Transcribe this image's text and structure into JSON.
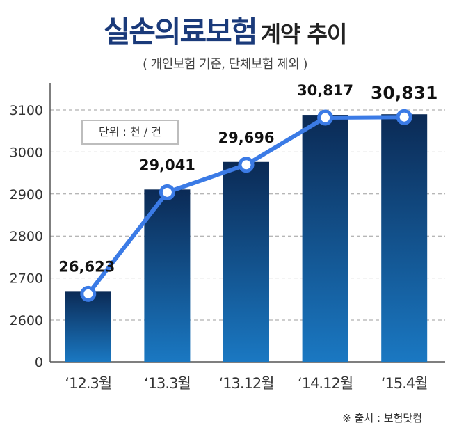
{
  "title": {
    "main": "실손의료보험",
    "sub": "계약 추이"
  },
  "subtitle": "( 개인보험 기준, 단체보험 제외 )",
  "unit_note": "단위 : 천 / 건",
  "source": "※ 출처 : 보험닷컴",
  "chart_data": {
    "type": "bar",
    "categories": [
      "‘12.3월",
      "‘13.3월",
      "‘13.12월",
      "‘14.12월",
      "‘15.4월"
    ],
    "values": [
      26623,
      29041,
      29696,
      30817,
      30831
    ],
    "data_labels": [
      "26,623",
      "29,041",
      "29,696",
      "30,817",
      "30,831"
    ],
    "overlay_line": true,
    "y_axis": {
      "ticks": [
        "3100",
        "3000",
        "2900",
        "2800",
        "2700",
        "2600",
        "0"
      ],
      "tick_values": [
        3100,
        3000,
        2900,
        2800,
        2700,
        2600,
        0
      ],
      "broken": true
    },
    "grid": "dashed-horizontal",
    "colors": {
      "bar_top": "#0b2a55",
      "bar_bottom": "#1a78c2",
      "line": "#3b7be6",
      "marker_fill": "#ffffff"
    }
  }
}
